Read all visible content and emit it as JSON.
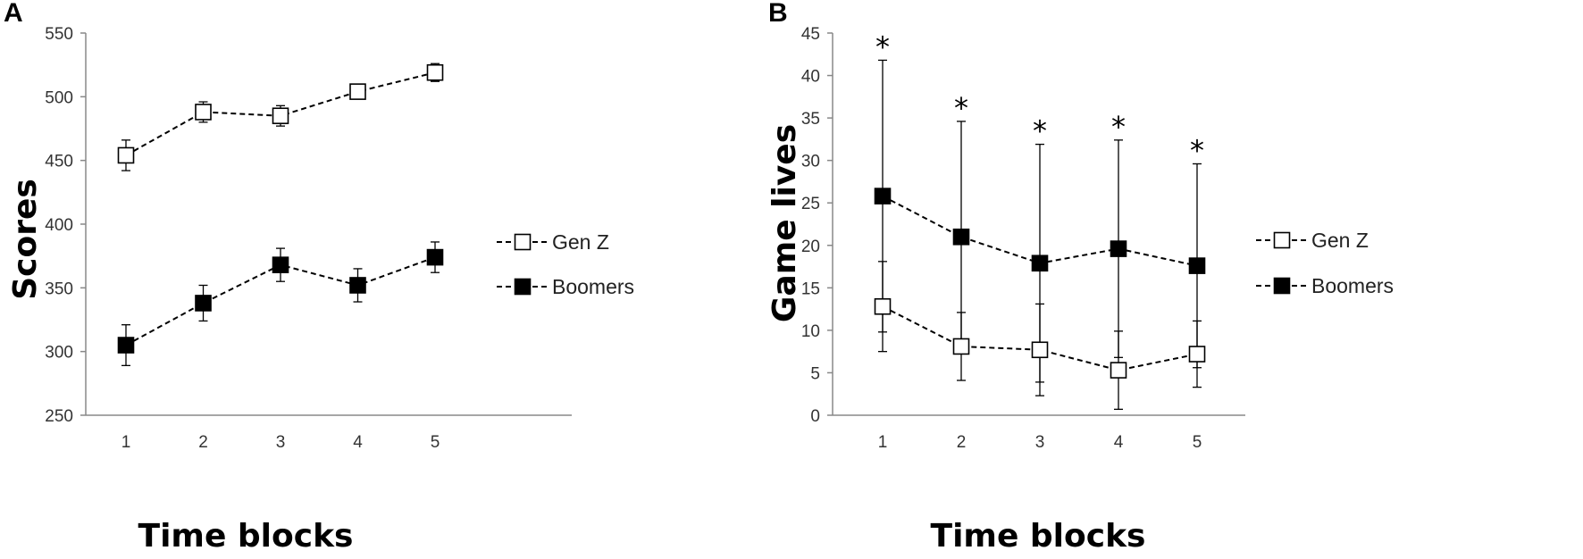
{
  "chart_data": [
    {
      "panel": "A",
      "type": "line",
      "xlabel": "Time blocks",
      "ylabel": "Scores",
      "categories": [
        "1",
        "2",
        "3",
        "4",
        "5"
      ],
      "ylim": [
        250,
        550
      ],
      "yticks": [
        250,
        300,
        350,
        400,
        450,
        500,
        550
      ],
      "grid": false,
      "legend_position": "right",
      "series": [
        {
          "name": "Gen Z",
          "marker": "open-square",
          "values": [
            454,
            488,
            485,
            504,
            519
          ],
          "error": [
            12,
            8,
            8,
            4,
            7
          ]
        },
        {
          "name": "Boomers",
          "marker": "filled-square",
          "values": [
            305,
            338,
            368,
            352,
            374
          ],
          "error": [
            16,
            14,
            13,
            13,
            12
          ]
        }
      ]
    },
    {
      "panel": "B",
      "type": "line",
      "xlabel": "Time blocks",
      "ylabel": "Game lives",
      "categories": [
        "1",
        "2",
        "3",
        "4",
        "5"
      ],
      "ylim": [
        0,
        45
      ],
      "yticks": [
        0,
        5,
        10,
        15,
        20,
        25,
        30,
        35,
        40,
        45
      ],
      "grid": false,
      "legend_position": "right",
      "significance": [
        "*",
        "*",
        "*",
        "*",
        "*"
      ],
      "series": [
        {
          "name": "Gen Z",
          "marker": "open-square",
          "values": [
            12.8,
            8.1,
            7.7,
            5.3,
            7.2
          ],
          "error": [
            5.3,
            4.0,
            5.4,
            4.6,
            3.9
          ]
        },
        {
          "name": "Boomers",
          "marker": "filled-square",
          "values": [
            25.8,
            21.0,
            17.9,
            19.6,
            17.6
          ],
          "error": [
            16.0,
            13.6,
            14.0,
            12.8,
            12.0
          ]
        }
      ]
    }
  ]
}
